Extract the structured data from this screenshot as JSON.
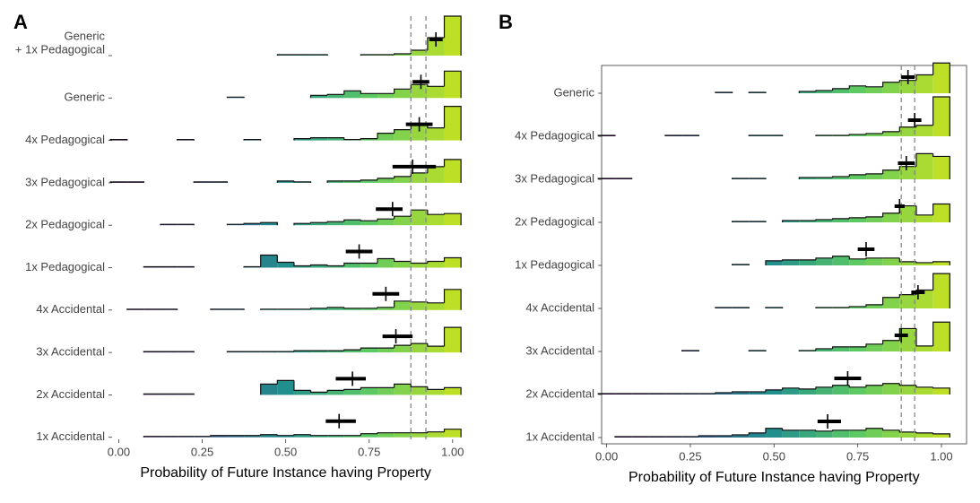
{
  "chart_data": [
    {
      "type": "ridgeline",
      "tag": "A",
      "frame": false,
      "fill_colormap": "viridis",
      "x_label": "Probability of Future Instance having Property",
      "xlim": [
        -0.02,
        1.03
      ],
      "xticks": [
        {
          "value": 0,
          "label": "0.00"
        },
        0.25,
        {
          "value": 0.5,
          "label": "0.50"
        },
        0.75,
        {
          "value": 1,
          "label": "1.00"
        }
      ],
      "vlines": [
        0.875,
        0.92
      ],
      "bins": [
        -0.025,
        0.025,
        0.075,
        0.125,
        0.175,
        0.225,
        0.275,
        0.325,
        0.375,
        0.425,
        0.475,
        0.525,
        0.575,
        0.625,
        0.675,
        0.725,
        0.775,
        0.825,
        0.875,
        0.925,
        0.975,
        1.025
      ],
      "rows": [
        {
          "label": [
            "Generic",
            "+ 1x Pedagogical"
          ],
          "values": [
            0,
            0,
            0,
            0,
            0,
            0,
            0,
            0,
            0,
            0,
            1,
            1,
            1,
            0,
            0,
            1,
            1,
            2,
            6,
            20,
            44
          ],
          "mean": 0.95,
          "ci": [
            0.93,
            0.97
          ]
        },
        {
          "label": "Generic",
          "values": [
            0,
            0,
            0,
            0,
            0,
            0,
            0,
            1,
            0,
            0,
            0,
            0,
            3,
            4,
            8,
            5,
            5,
            10,
            15,
            13,
            30
          ],
          "mean": 0.905,
          "ci": [
            0.88,
            0.93
          ]
        },
        {
          "label": "4x Pedagogical",
          "values": [
            1,
            0,
            0,
            0,
            1,
            0,
            0,
            0,
            1,
            0,
            0,
            2,
            3,
            3,
            1,
            2,
            8,
            12,
            18,
            14,
            38
          ],
          "mean": 0.9,
          "ci": [
            0.86,
            0.94
          ]
        },
        {
          "label": "3x Pedagogical",
          "values": [
            1,
            1,
            0,
            0,
            0,
            1,
            1,
            0,
            0,
            0,
            2,
            1,
            0,
            2,
            2,
            3,
            5,
            7,
            11,
            18,
            26
          ],
          "mean": 0.88,
          "ci": [
            0.82,
            0.95
          ]
        },
        {
          "label": "2x Pedagogical",
          "values": [
            0,
            0,
            0,
            1,
            1,
            0,
            0,
            1,
            2,
            3,
            0,
            2,
            3,
            4,
            6,
            5,
            7,
            10,
            17,
            12,
            13
          ],
          "mean": 0.82,
          "ci": [
            0.77,
            0.85
          ]
        },
        {
          "label": "1x Pedagogical",
          "values": [
            0,
            0,
            1,
            1,
            1,
            0,
            0,
            0,
            1,
            14,
            6,
            2,
            3,
            2,
            5,
            5,
            10,
            7,
            5,
            7,
            11
          ],
          "mean": 0.72,
          "ci": [
            0.68,
            0.76
          ]
        },
        {
          "label": "4x Accidental",
          "values": [
            0,
            1,
            1,
            1,
            0,
            0,
            1,
            1,
            0,
            1,
            1,
            1,
            2,
            3,
            2,
            2,
            3,
            10,
            9,
            8,
            23
          ],
          "mean": 0.8,
          "ci": [
            0.76,
            0.84
          ]
        },
        {
          "label": "3x Accidental",
          "values": [
            0,
            0,
            1,
            1,
            1,
            0,
            0,
            1,
            1,
            1,
            1,
            2,
            2,
            2,
            3,
            5,
            5,
            8,
            10,
            7,
            28
          ],
          "mean": 0.83,
          "ci": [
            0.79,
            0.88
          ]
        },
        {
          "label": "2x Accidental",
          "values": [
            0,
            0,
            1,
            1,
            1,
            0,
            0,
            0,
            0,
            12,
            16,
            5,
            3,
            5,
            6,
            8,
            8,
            12,
            9,
            6,
            8
          ],
          "mean": 0.7,
          "ci": [
            0.65,
            0.74
          ]
        },
        {
          "label": "1x Accidental",
          "values": [
            0,
            0,
            1,
            1,
            1,
            1,
            2,
            2,
            2,
            3,
            2,
            3,
            2,
            2,
            2,
            4,
            5,
            5,
            5,
            6,
            9
          ],
          "mean": 0.66,
          "ci": [
            0.62,
            0.71
          ]
        }
      ]
    },
    {
      "type": "ridgeline",
      "tag": "B",
      "frame": true,
      "fill_colormap": "viridis",
      "x_label": "Probability of Future Instance having Property",
      "xlim": [
        -0.015,
        1.075
      ],
      "xticks": [
        {
          "value": 0,
          "label": "0.00"
        },
        0.25,
        {
          "value": 0.5,
          "label": "0.50"
        },
        0.75,
        {
          "value": 1,
          "label": "1.00"
        }
      ],
      "vlines": [
        0.88,
        0.92
      ],
      "bins": [
        -0.025,
        0.025,
        0.075,
        0.125,
        0.175,
        0.225,
        0.275,
        0.325,
        0.375,
        0.425,
        0.475,
        0.525,
        0.575,
        0.625,
        0.675,
        0.725,
        0.775,
        0.825,
        0.875,
        0.925,
        0.975,
        1.025
      ],
      "rows": [
        {
          "label": "Generic",
          "values": [
            0,
            0,
            0,
            0,
            0,
            0,
            0,
            1,
            0,
            1,
            0,
            0,
            2,
            3,
            5,
            8,
            7,
            12,
            14,
            20,
            33
          ],
          "mean": 0.9,
          "ci": [
            0.88,
            0.92
          ]
        },
        {
          "label": "4x Pedagogical",
          "values": [
            1,
            0,
            0,
            0,
            1,
            1,
            0,
            0,
            0,
            1,
            1,
            0,
            0,
            1,
            1,
            2,
            3,
            5,
            10,
            12,
            43
          ],
          "mean": 0.92,
          "ci": [
            0.9,
            0.94
          ]
        },
        {
          "label": "3x Pedagogical",
          "values": [
            1,
            1,
            0,
            0,
            0,
            0,
            0,
            0,
            1,
            1,
            0,
            0,
            2,
            2,
            3,
            5,
            6,
            10,
            14,
            28,
            25
          ],
          "mean": 0.895,
          "ci": [
            0.87,
            0.92
          ]
        },
        {
          "label": "2x Pedagogical",
          "values": [
            0,
            0,
            0,
            0,
            0,
            0,
            0,
            0,
            1,
            1,
            0,
            2,
            2,
            3,
            4,
            5,
            6,
            10,
            18,
            8,
            20
          ],
          "mean": 0.875,
          "ci": [
            0.86,
            0.89
          ]
        },
        {
          "label": "1x Pedagogical",
          "values": [
            0,
            0,
            0,
            0,
            0,
            0,
            0,
            0,
            1,
            0,
            5,
            6,
            6,
            8,
            10,
            7,
            8,
            8,
            4,
            3,
            4
          ],
          "mean": 0.775,
          "ci": [
            0.75,
            0.8
          ]
        },
        {
          "label": "4x Accidental",
          "values": [
            0,
            0,
            0,
            0,
            0,
            0,
            0,
            1,
            1,
            0,
            1,
            0,
            0,
            1,
            1,
            2,
            4,
            12,
            15,
            20,
            38
          ],
          "mean": 0.93,
          "ci": [
            0.91,
            0.95
          ]
        },
        {
          "label": "3x Accidental",
          "values": [
            0,
            0,
            0,
            0,
            0,
            1,
            0,
            0,
            0,
            1,
            0,
            0,
            1,
            3,
            5,
            5,
            8,
            12,
            25,
            6,
            32
          ],
          "mean": 0.88,
          "ci": [
            0.86,
            0.9
          ]
        },
        {
          "label": "2x Accidental",
          "values": [
            1,
            1,
            1,
            1,
            1,
            1,
            1,
            2,
            3,
            3,
            5,
            7,
            6,
            8,
            10,
            8,
            10,
            12,
            10,
            8,
            7
          ],
          "mean": 0.72,
          "ci": [
            0.68,
            0.76
          ]
        },
        {
          "label": "1x Accidental",
          "values": [
            0,
            1,
            1,
            1,
            1,
            1,
            2,
            2,
            3,
            5,
            10,
            8,
            8,
            7,
            8,
            8,
            10,
            8,
            6,
            5,
            4
          ],
          "mean": 0.66,
          "ci": [
            0.63,
            0.7
          ]
        }
      ]
    }
  ]
}
